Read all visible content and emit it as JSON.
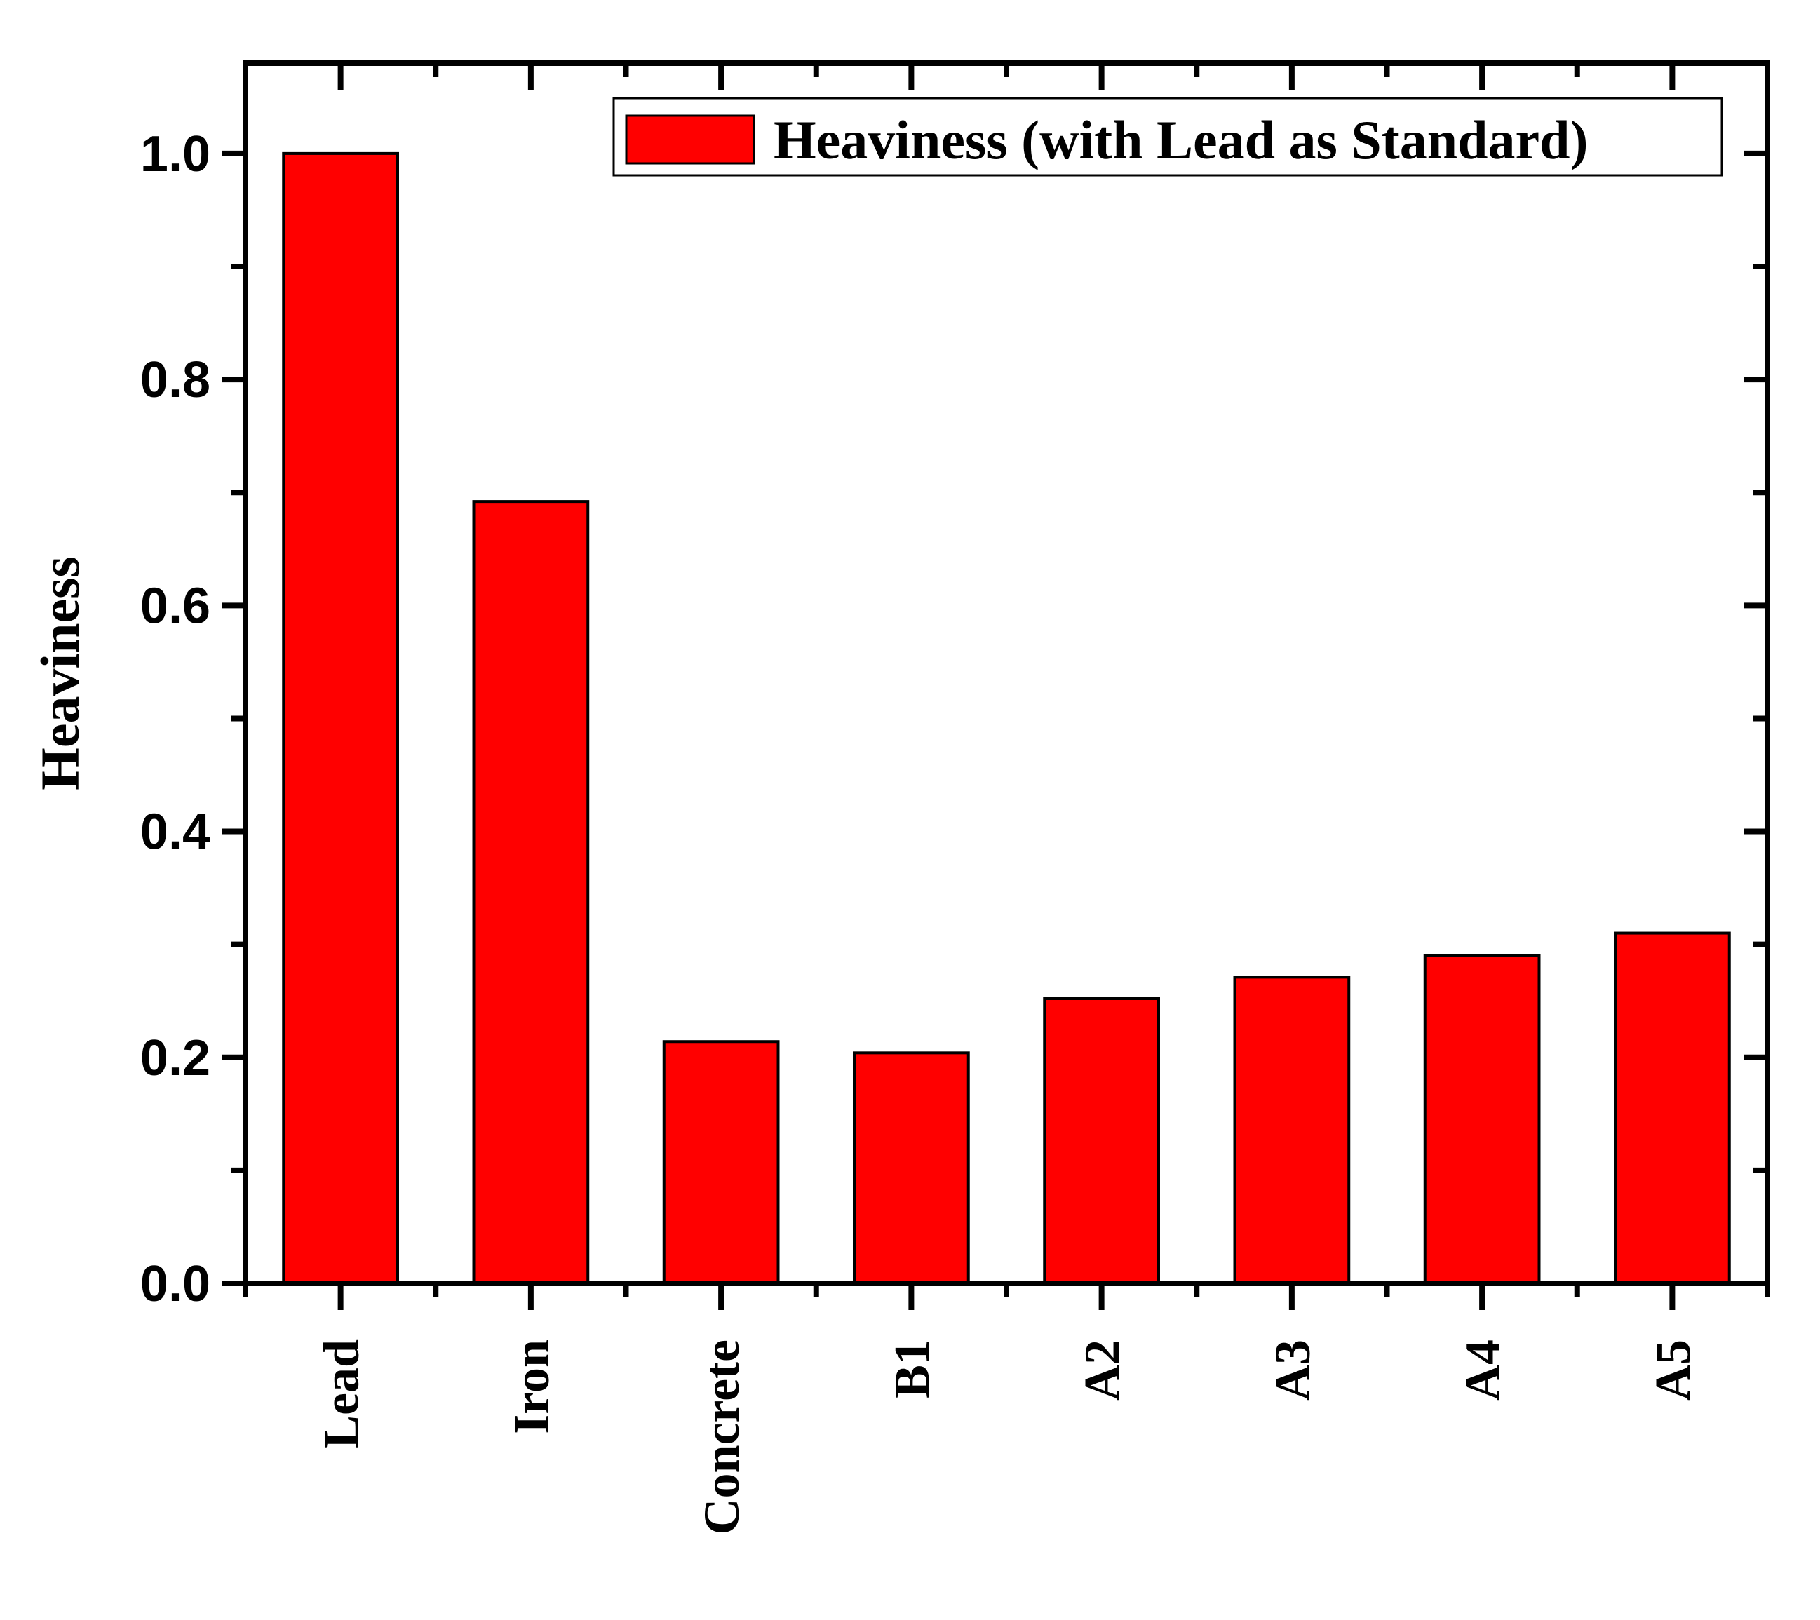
{
  "chart_data": {
    "type": "bar",
    "title": "",
    "xlabel": "",
    "ylabel": "Heaviness",
    "categories": [
      "Lead",
      "Iron",
      "Concrete",
      "B1",
      "A2",
      "A3",
      "A4",
      "A5"
    ],
    "series": [
      {
        "name": "Heaviness (with Lead as Standard)",
        "values": [
          1.0,
          0.692,
          0.214,
          0.204,
          0.252,
          0.271,
          0.29,
          0.31
        ],
        "color": "#ff0000"
      }
    ],
    "ylim": [
      0,
      1.08
    ],
    "yticks": [
      "0.0",
      "0.2",
      "0.4",
      "0.6",
      "0.8",
      "1.0"
    ],
    "legend_position": "top-right",
    "grid": false
  }
}
